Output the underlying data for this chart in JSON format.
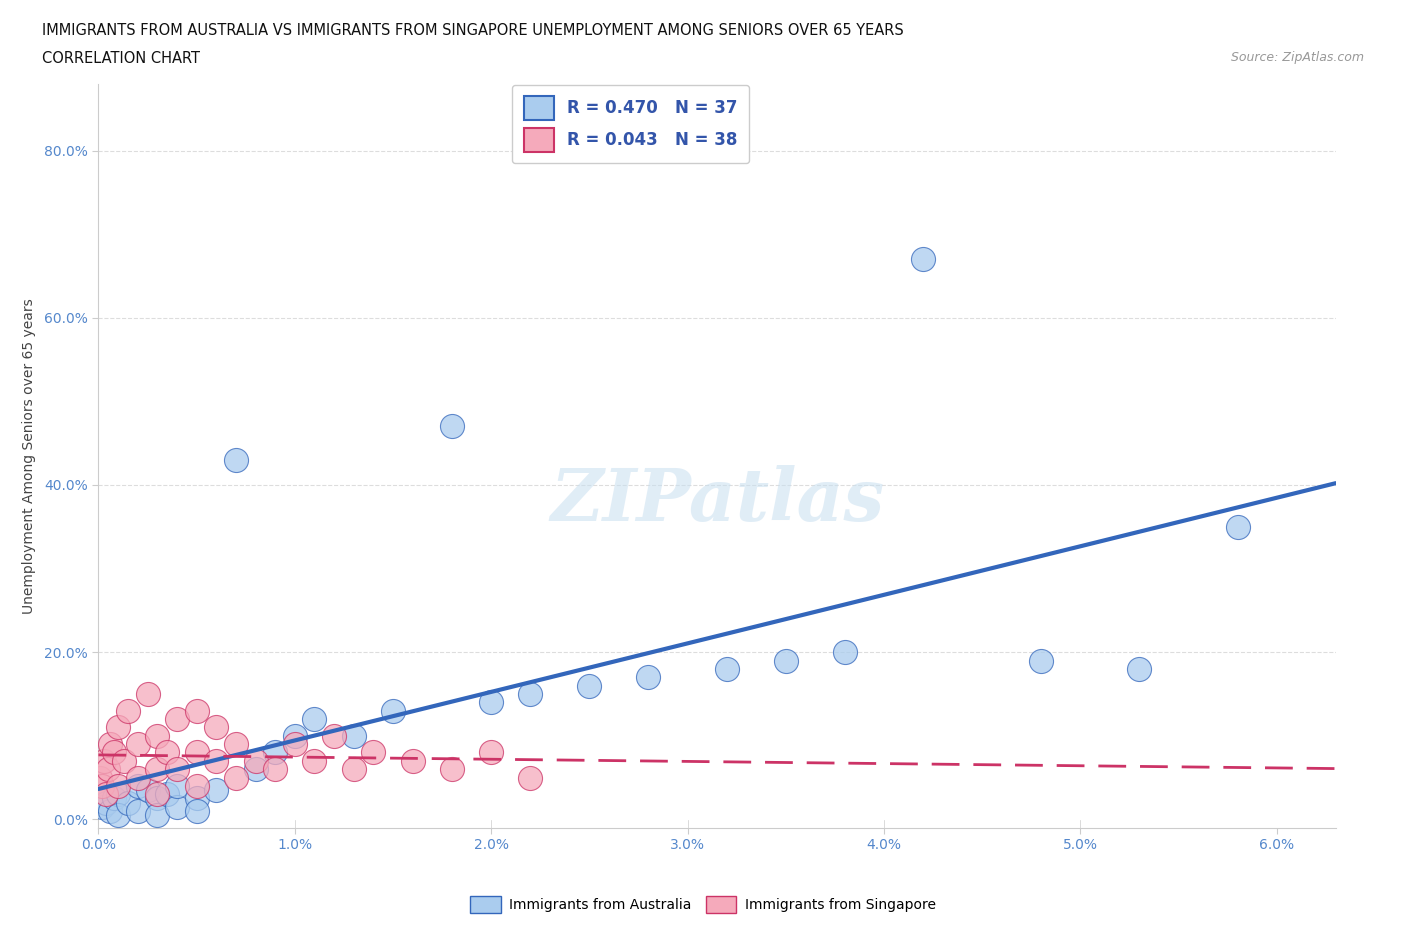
{
  "title_line1": "IMMIGRANTS FROM AUSTRALIA VS IMMIGRANTS FROM SINGAPORE UNEMPLOYMENT AMONG SENIORS OVER 65 YEARS",
  "title_line2": "CORRELATION CHART",
  "source": "Source: ZipAtlas.com",
  "xlabel_ticks": [
    "0.0%",
    "1.0%",
    "2.0%",
    "3.0%",
    "4.0%",
    "5.0%",
    "6.0%"
  ],
  "ylabel_ticks": [
    "0.0%",
    "20.0%",
    "40.0%",
    "60.0%",
    "80.0%"
  ],
  "ylabel_label": "Unemployment Among Seniors over 65 years",
  "xlim": [
    0.0,
    0.063
  ],
  "ylim": [
    -0.01,
    0.88
  ],
  "australia_R": 0.47,
  "australia_N": 37,
  "singapore_R": 0.043,
  "singapore_N": 38,
  "australia_color": "#aaccee",
  "singapore_color": "#f5aabb",
  "australia_line_color": "#3366bb",
  "singapore_line_color": "#cc3366",
  "watermark_text": "ZIPatlas",
  "legend_label_australia": "Immigrants from Australia",
  "legend_label_singapore": "Immigrants from Singapore",
  "background_color": "#ffffff",
  "grid_color": "#cccccc",
  "australia_scatter_x": [
    0.0002,
    0.0004,
    0.0006,
    0.0008,
    0.001,
    0.001,
    0.0015,
    0.002,
    0.002,
    0.0025,
    0.003,
    0.003,
    0.0035,
    0.004,
    0.004,
    0.005,
    0.005,
    0.006,
    0.007,
    0.008,
    0.009,
    0.01,
    0.011,
    0.013,
    0.015,
    0.018,
    0.02,
    0.022,
    0.025,
    0.028,
    0.032,
    0.035,
    0.038,
    0.042,
    0.048,
    0.053,
    0.058
  ],
  "australia_scatter_y": [
    0.015,
    0.02,
    0.01,
    0.025,
    0.03,
    0.005,
    0.02,
    0.04,
    0.01,
    0.035,
    0.025,
    0.005,
    0.03,
    0.015,
    0.04,
    0.025,
    0.01,
    0.035,
    0.43,
    0.06,
    0.08,
    0.1,
    0.12,
    0.1,
    0.13,
    0.47,
    0.14,
    0.15,
    0.16,
    0.17,
    0.18,
    0.19,
    0.2,
    0.67,
    0.19,
    0.18,
    0.35
  ],
  "singapore_scatter_x": [
    0.0001,
    0.0002,
    0.0003,
    0.0004,
    0.0005,
    0.0006,
    0.0008,
    0.001,
    0.001,
    0.0013,
    0.0015,
    0.002,
    0.002,
    0.0025,
    0.003,
    0.003,
    0.003,
    0.0035,
    0.004,
    0.004,
    0.005,
    0.005,
    0.005,
    0.006,
    0.006,
    0.007,
    0.007,
    0.008,
    0.009,
    0.01,
    0.011,
    0.012,
    0.013,
    0.014,
    0.016,
    0.018,
    0.02,
    0.022
  ],
  "singapore_scatter_y": [
    0.05,
    0.04,
    0.07,
    0.03,
    0.06,
    0.09,
    0.08,
    0.04,
    0.11,
    0.07,
    0.13,
    0.05,
    0.09,
    0.15,
    0.06,
    0.1,
    0.03,
    0.08,
    0.06,
    0.12,
    0.04,
    0.08,
    0.13,
    0.07,
    0.11,
    0.05,
    0.09,
    0.07,
    0.06,
    0.09,
    0.07,
    0.1,
    0.06,
    0.08,
    0.07,
    0.06,
    0.08,
    0.05
  ]
}
